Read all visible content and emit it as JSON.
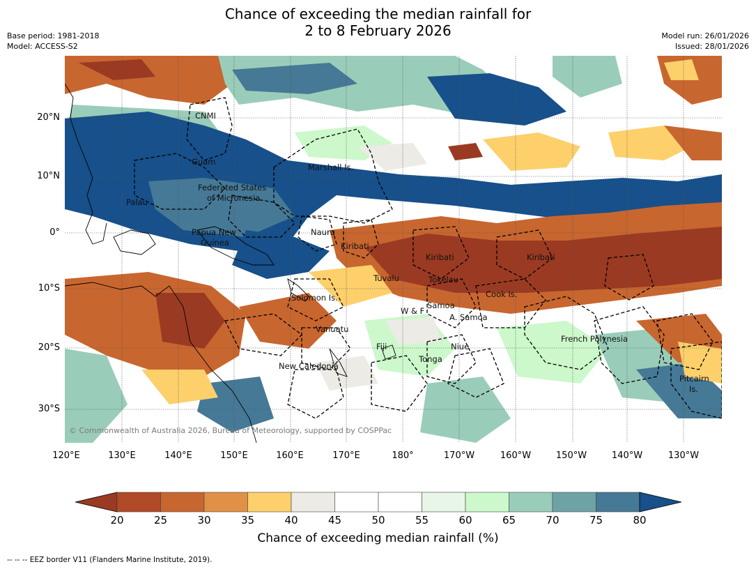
{
  "title_line1": "Chance of exceeding the median rainfall for",
  "title_line2": "2 to 8 February 2026",
  "meta_left": [
    "Base period: 1981-2018",
    "Model: ACCESS-S2"
  ],
  "meta_right": [
    "Model run: 26/01/2026",
    "Issued: 28/01/2026"
  ],
  "lat_labels": [
    "20°N",
    "10°N",
    "0°",
    "10°S",
    "20°S",
    "30°S"
  ],
  "lon_labels": [
    "120°E",
    "130°E",
    "140°E",
    "150°E",
    "160°E",
    "170°E",
    "180°",
    "170°W",
    "160°W",
    "150°W",
    "140°W",
    "130°W"
  ],
  "places": [
    {
      "name": "CNMI"
    },
    {
      "name": "Guam"
    },
    {
      "name": "Marshall Is."
    },
    {
      "name": "Federated States"
    },
    {
      "name": "of Micronesia"
    },
    {
      "name": "Palau"
    },
    {
      "name": "Papua New"
    },
    {
      "name": "Guinea"
    },
    {
      "name": "Nauru"
    },
    {
      "name": "Kiribati"
    },
    {
      "name": "Kiribati"
    },
    {
      "name": "Kiribati"
    },
    {
      "name": "Tuvalu"
    },
    {
      "name": "Tokelau"
    },
    {
      "name": "Cook Is."
    },
    {
      "name": "Solomon Is."
    },
    {
      "name": "W & F"
    },
    {
      "name": "Samoa"
    },
    {
      "name": "A. Samoa"
    },
    {
      "name": "Vanuatu"
    },
    {
      "name": "Fiji"
    },
    {
      "name": "Niue"
    },
    {
      "name": "French Polynesia"
    },
    {
      "name": "Tonga"
    },
    {
      "name": "New Caledonia"
    },
    {
      "name": "Pitcairn"
    },
    {
      "name": "Is."
    }
  ],
  "copyright": "© Commonwealth of Australia 2026, Bureau of Meteorology, supported by COSPPac",
  "colorbar": {
    "ticks": [
      "20",
      "25",
      "30",
      "35",
      "40",
      "45",
      "50",
      "55",
      "60",
      "65",
      "70",
      "75",
      "80"
    ],
    "colors": [
      "#9b3a22",
      "#b14a26",
      "#c8662f",
      "#e19145",
      "#fdd06b",
      "#edebe6",
      "#ffffff",
      "#ffffff",
      "#e8f6e8",
      "#ccf8cb",
      "#9acdb9",
      "#6ea3a6",
      "#457996",
      "#17508a"
    ],
    "label": "Chance of exceeding median rainfall (%)"
  },
  "footer": "--  --  -- EEZ border V11 (Flanders Marine Institute, 2019).",
  "palette": {
    "dark_brown": "#9b3a22",
    "orange": "#e19145",
    "yellow": "#fdd06b",
    "light_gray": "#edebe6",
    "light_green": "#ccf8cb",
    "teal": "#6ea3a6",
    "dark_blue": "#17508a"
  }
}
